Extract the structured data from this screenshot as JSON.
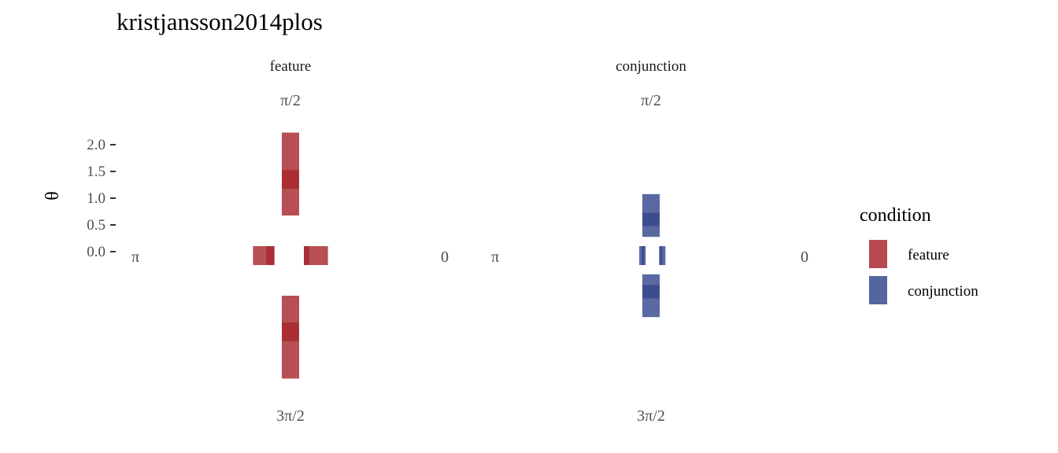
{
  "chart_data": {
    "type": "polar-bar",
    "title": "kristjansson2014plos",
    "ylabel": "θ",
    "yticks": [
      "0.0",
      "0.5",
      "1.0",
      "1.5",
      "2.0"
    ],
    "ylim": [
      0,
      2.3
    ],
    "direction_labels": {
      "top": "π/2",
      "left": "π",
      "right": "0",
      "bottom": "3π/2"
    },
    "legend": {
      "title": "condition",
      "position": "right",
      "entries": [
        {
          "label": "feature",
          "color": "#a31d24"
        },
        {
          "label": "conjunction",
          "color": "#2b3f86"
        }
      ]
    },
    "panels": [
      {
        "strip": "feature",
        "condition": "feature",
        "arms": [
          {
            "direction": "top",
            "min": 0.75,
            "max": 2.3,
            "mean_min": 1.25,
            "mean_max": 1.6
          },
          {
            "direction": "bottom",
            "min": 0.75,
            "max": 2.3,
            "mean_min": 1.25,
            "mean_max": 1.6
          },
          {
            "direction": "left",
            "min": 0.3,
            "max": 0.7,
            "mean_min": 0.3,
            "mean_max": 0.45
          },
          {
            "direction": "right",
            "min": 0.25,
            "max": 0.7,
            "mean_min": 0.25,
            "mean_max": 0.35
          }
        ]
      },
      {
        "strip": "conjunction",
        "condition": "conjunction",
        "arms": [
          {
            "direction": "top",
            "min": 0.35,
            "max": 1.15,
            "mean_min": 0.55,
            "mean_max": 0.8
          },
          {
            "direction": "bottom",
            "min": 0.35,
            "max": 1.15,
            "mean_min": 0.55,
            "mean_max": 0.8
          },
          {
            "direction": "left",
            "min": 0.1,
            "max": 0.22,
            "mean_min": 0.13,
            "mean_max": 0.17
          },
          {
            "direction": "right",
            "min": 0.15,
            "max": 0.27,
            "mean_min": 0.17,
            "mean_max": 0.21
          }
        ]
      }
    ]
  }
}
